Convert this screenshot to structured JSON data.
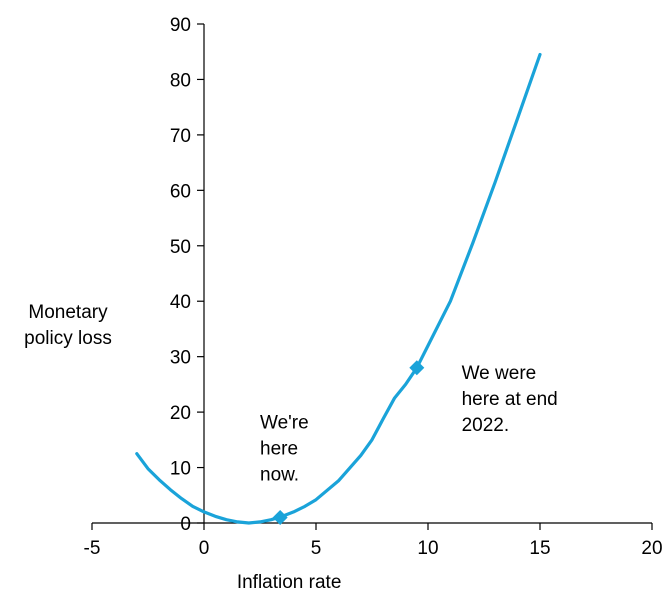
{
  "chart_data": {
    "type": "line",
    "title": "",
    "xlabel": "Inflation rate",
    "ylabel": [
      "Monetary",
      "policy loss"
    ],
    "xlim": [
      -5,
      20
    ],
    "ylim": [
      0,
      90
    ],
    "xticks": [
      -5,
      0,
      5,
      10,
      15,
      20
    ],
    "yticks": [
      0,
      10,
      20,
      30,
      40,
      50,
      60,
      70,
      80,
      90
    ],
    "grid": false,
    "legend": "none",
    "series": [
      {
        "color": "#1aa3d9",
        "x": [
          -3,
          -2.5,
          -2,
          -1.5,
          -1,
          -0.5,
          0,
          0.5,
          1,
          1.5,
          2,
          2.5,
          3,
          3.5,
          4,
          4.5,
          5,
          6,
          7,
          7.5,
          8,
          8.5,
          9,
          9.5,
          10,
          11,
          12,
          13,
          14,
          15
        ],
        "y": [
          12.5,
          9.8,
          7.8,
          6.0,
          4.4,
          3.0,
          2.0,
          1.2,
          0.6,
          0.2,
          0.0,
          0.2,
          0.6,
          1.2,
          2.0,
          3.0,
          4.2,
          7.6,
          12.2,
          15.0,
          18.8,
          22.5,
          25.0,
          28.0,
          32.0,
          40.0,
          50.5,
          61.5,
          73.0,
          84.5
        ]
      }
    ],
    "markers": [
      {
        "x": 3.4,
        "y": 1.0
      },
      {
        "x": 9.5,
        "y": 28.0
      }
    ],
    "annotations": [
      {
        "lines": [
          "We're",
          "here",
          "now."
        ],
        "x": 2.5,
        "y": 17.0
      },
      {
        "lines": [
          "We were",
          "here at end",
          "2022."
        ],
        "x": 11.5,
        "y": 26.0
      }
    ]
  }
}
